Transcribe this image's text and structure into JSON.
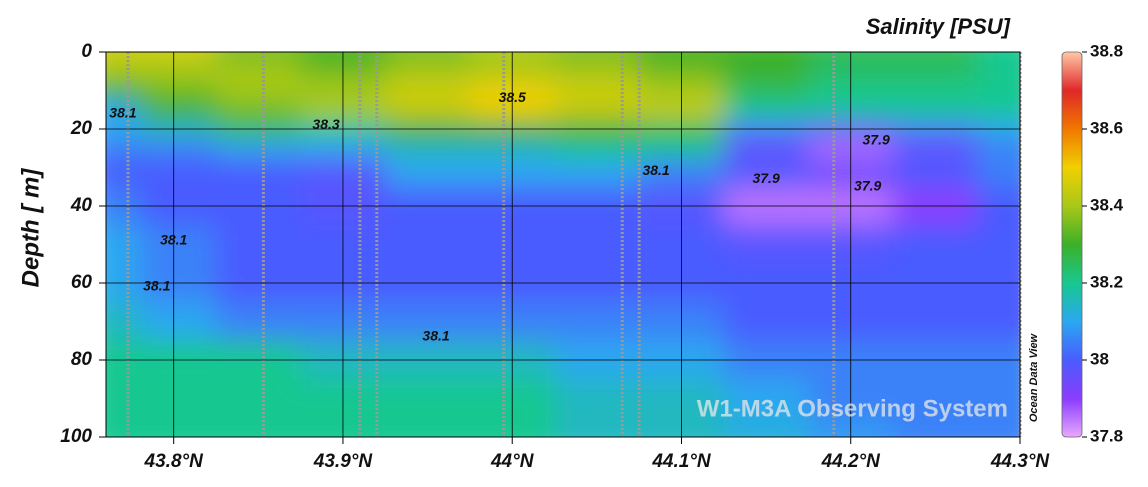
{
  "chart_data": {
    "type": "heatmap",
    "title": "Salinity [PSU]",
    "ylabel": "Depth [ m]",
    "watermark": "Ocean Data View",
    "annotation": "W1-M3A Observing System",
    "xlim": [
      43.76,
      44.3
    ],
    "xticks": [
      {
        "value": 43.8,
        "label": "43.8°N"
      },
      {
        "value": 43.9,
        "label": "43.9°N"
      },
      {
        "value": 44.0,
        "label": "44°N"
      },
      {
        "value": 44.1,
        "label": "44.1°N"
      },
      {
        "value": 44.2,
        "label": "44.2°N"
      },
      {
        "value": 44.3,
        "label": "44.3°N"
      }
    ],
    "ylim": [
      0,
      100
    ],
    "yticks": [
      0,
      20,
      40,
      60,
      80,
      100
    ],
    "y_inverted": true,
    "grid": true,
    "clim": [
      37.8,
      38.8
    ],
    "cticks": [
      37.8,
      38,
      38.2,
      38.4,
      38.6,
      38.8
    ],
    "colorscale": [
      [
        37.8,
        "#e8a8ff"
      ],
      [
        37.9,
        "#8a3cff"
      ],
      [
        38.0,
        "#4a5cff"
      ],
      [
        38.1,
        "#2aa8f0"
      ],
      [
        38.2,
        "#18c890"
      ],
      [
        38.3,
        "#3cb028"
      ],
      [
        38.4,
        "#a8c818"
      ],
      [
        38.5,
        "#f0d000"
      ],
      [
        38.6,
        "#f07800"
      ],
      [
        38.7,
        "#e02828"
      ],
      [
        38.8,
        "#ffc8a8"
      ]
    ],
    "x": [
      43.76,
      43.8,
      43.85,
      43.9,
      43.95,
      44.0,
      44.05,
      44.1,
      44.15,
      44.2,
      44.25,
      44.3
    ],
    "depth": [
      0,
      5,
      10,
      15,
      20,
      25,
      30,
      40,
      50,
      60,
      70,
      80,
      90,
      100
    ],
    "z": [
      [
        38.45,
        38.45,
        38.35,
        38.3,
        38.35,
        38.4,
        38.35,
        38.3,
        38.3,
        38.25,
        38.25,
        38.2
      ],
      [
        38.4,
        38.4,
        38.4,
        38.35,
        38.4,
        38.4,
        38.4,
        38.35,
        38.3,
        38.25,
        38.25,
        38.2
      ],
      [
        38.3,
        38.35,
        38.4,
        38.4,
        38.45,
        38.5,
        38.45,
        38.4,
        38.25,
        38.2,
        38.2,
        38.2
      ],
      [
        38.1,
        38.3,
        38.35,
        38.4,
        38.45,
        38.5,
        38.45,
        38.45,
        38.2,
        38.2,
        38.2,
        38.2
      ],
      [
        38.1,
        38.15,
        38.25,
        38.2,
        38.3,
        38.3,
        38.3,
        38.25,
        38.05,
        38.0,
        38.05,
        38.1
      ],
      [
        38.05,
        38.05,
        38.1,
        38.1,
        38.15,
        38.15,
        38.2,
        38.2,
        37.95,
        37.85,
        37.95,
        38.05
      ],
      [
        38.0,
        38.0,
        38.0,
        37.98,
        38.1,
        38.1,
        38.1,
        38.05,
        38.0,
        37.95,
        38.0,
        38.05
      ],
      [
        38.05,
        38.0,
        38.0,
        37.98,
        38.0,
        38.0,
        38.0,
        37.98,
        37.85,
        37.85,
        37.9,
        38.0
      ],
      [
        38.1,
        38.05,
        38.0,
        38.0,
        38.0,
        38.0,
        38.0,
        38.0,
        37.98,
        37.98,
        38.0,
        38.0
      ],
      [
        38.1,
        38.05,
        38.0,
        38.0,
        38.0,
        38.0,
        38.0,
        38.0,
        38.0,
        38.0,
        38.0,
        38.0
      ],
      [
        38.15,
        38.1,
        38.05,
        38.05,
        38.05,
        38.05,
        38.05,
        38.05,
        38.0,
        38.0,
        38.0,
        38.0
      ],
      [
        38.2,
        38.2,
        38.2,
        38.15,
        38.15,
        38.15,
        38.1,
        38.1,
        38.05,
        38.05,
        38.05,
        38.05
      ],
      [
        38.2,
        38.2,
        38.2,
        38.2,
        38.2,
        38.2,
        38.15,
        38.15,
        38.1,
        38.05,
        38.05,
        38.05
      ],
      [
        38.2,
        38.2,
        38.2,
        38.2,
        38.2,
        38.2,
        38.15,
        38.15,
        38.12,
        38.08,
        38.05,
        38.05
      ]
    ],
    "stations": [
      43.773,
      43.853,
      43.91,
      43.92,
      43.995,
      44.065,
      44.075,
      44.19,
      44.3
    ],
    "contour_labels": [
      {
        "value": 38.1,
        "x": 43.77,
        "y": 16
      },
      {
        "value": 38.3,
        "x": 43.89,
        "y": 19
      },
      {
        "value": 38.5,
        "x": 44.0,
        "y": 12
      },
      {
        "value": 37.9,
        "x": 44.215,
        "y": 23
      },
      {
        "value": 38.1,
        "x": 44.085,
        "y": 31
      },
      {
        "value": 37.9,
        "x": 44.15,
        "y": 33
      },
      {
        "value": 37.9,
        "x": 44.21,
        "y": 35
      },
      {
        "value": 38.1,
        "x": 43.8,
        "y": 49
      },
      {
        "value": 38.1,
        "x": 43.79,
        "y": 61
      },
      {
        "value": 38.1,
        "x": 43.955,
        "y": 74
      }
    ]
  }
}
